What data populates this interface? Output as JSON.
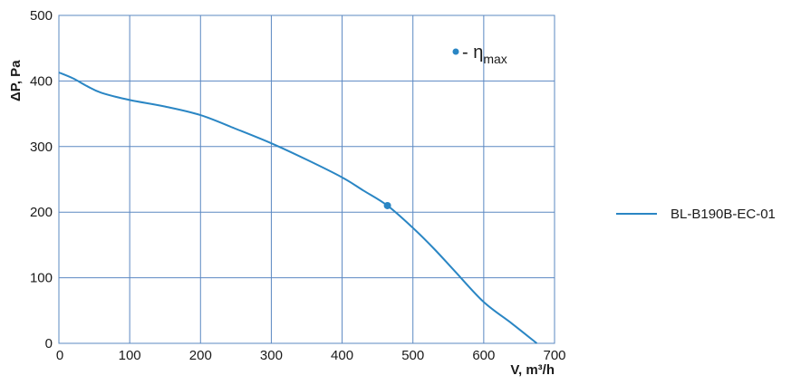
{
  "chart_data": {
    "type": "line",
    "xlabel": "V, m³/h",
    "ylabel": "ΔP, Pa",
    "xlim": [
      0,
      700
    ],
    "ylim": [
      0,
      500
    ],
    "x_ticks": [
      "0",
      "100",
      "200",
      "300",
      "400",
      "500",
      "600",
      "700"
    ],
    "y_ticks": [
      "0",
      "100",
      "200",
      "300",
      "400",
      "500"
    ],
    "grid": true,
    "legend_position": "right",
    "series": [
      {
        "name": "BL-B190B-EC-01",
        "color": "#2a86c4",
        "x": [
          0,
          20,
          40,
          60,
          100,
          150,
          200,
          250,
          300,
          350,
          400,
          430,
          464,
          500,
          530,
          560,
          600,
          640,
          675
        ],
        "y": [
          413,
          404,
          392,
          382,
          371,
          361,
          348,
          327,
          305,
          280,
          253,
          233,
          210,
          176,
          144,
          109,
          63,
          30,
          0
        ]
      }
    ],
    "markers": [
      {
        "x": 464,
        "y": 210,
        "color": "#2a86c4"
      }
    ],
    "annotation": {
      "prefix": "- η",
      "subscript": "max"
    }
  }
}
